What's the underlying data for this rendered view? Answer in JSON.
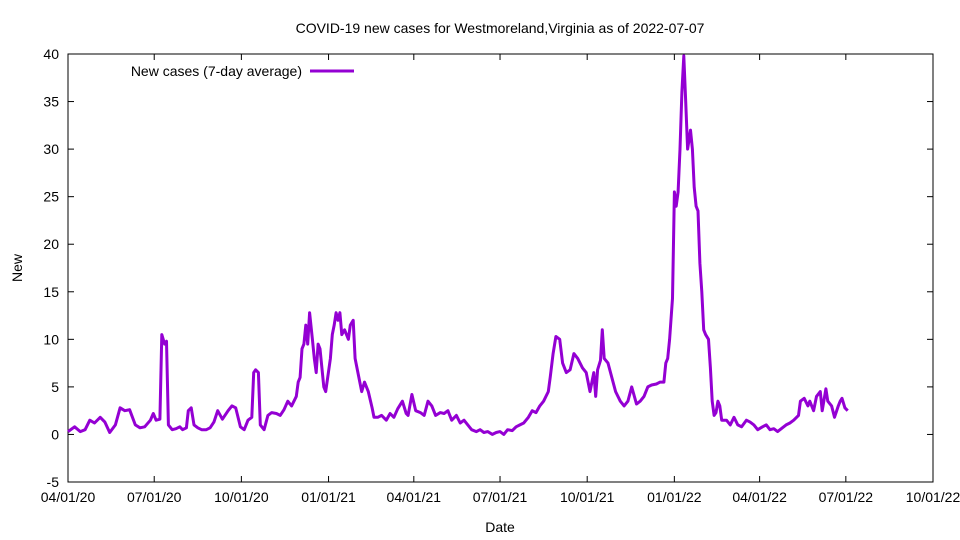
{
  "chart_data": {
    "type": "line",
    "title": "COVID-19 new cases for Westmoreland,Virginia as of 2022-07-07",
    "xlabel": "Date",
    "ylabel": "New",
    "x_unit": "days since 2020-04-01",
    "xlim": [
      0,
      913
    ],
    "ylim": [
      -5,
      40
    ],
    "grid": false,
    "legend_position": "top-left",
    "x_ticks": [
      {
        "value": 0,
        "label": "04/01/20"
      },
      {
        "value": 91,
        "label": "07/01/20"
      },
      {
        "value": 183,
        "label": "10/01/20"
      },
      {
        "value": 275,
        "label": "01/01/21"
      },
      {
        "value": 365,
        "label": "04/01/21"
      },
      {
        "value": 456,
        "label": "07/01/21"
      },
      {
        "value": 548,
        "label": "10/01/21"
      },
      {
        "value": 640,
        "label": "01/01/22"
      },
      {
        "value": 730,
        "label": "04/01/22"
      },
      {
        "value": 821,
        "label": "07/01/22"
      },
      {
        "value": 913,
        "label": "10/01/22"
      }
    ],
    "y_ticks": [
      {
        "value": -5,
        "label": "-5"
      },
      {
        "value": 0,
        "label": "0"
      },
      {
        "value": 5,
        "label": "5"
      },
      {
        "value": 10,
        "label": "10"
      },
      {
        "value": 15,
        "label": "15"
      },
      {
        "value": 20,
        "label": "20"
      },
      {
        "value": 25,
        "label": "25"
      },
      {
        "value": 30,
        "label": "30"
      },
      {
        "value": 35,
        "label": "35"
      },
      {
        "value": 40,
        "label": "40"
      }
    ],
    "series": [
      {
        "name": "New cases (7-day average)",
        "color": "#9400d3",
        "points": [
          [
            0,
            0.3
          ],
          [
            7,
            0.8
          ],
          [
            13,
            0.3
          ],
          [
            18,
            0.5
          ],
          [
            23,
            1.5
          ],
          [
            28,
            1.2
          ],
          [
            34,
            1.8
          ],
          [
            39,
            1.3
          ],
          [
            44,
            0.2
          ],
          [
            50,
            1.0
          ],
          [
            55,
            2.8
          ],
          [
            60,
            2.5
          ],
          [
            65,
            2.6
          ],
          [
            71,
            1.0
          ],
          [
            76,
            0.7
          ],
          [
            81,
            0.8
          ],
          [
            87,
            1.5
          ],
          [
            90,
            2.2
          ],
          [
            93,
            1.5
          ],
          [
            97,
            1.6
          ],
          [
            99,
            10.5
          ],
          [
            102,
            9.5
          ],
          [
            104,
            9.8
          ],
          [
            106,
            1.0
          ],
          [
            110,
            0.5
          ],
          [
            114,
            0.6
          ],
          [
            118,
            0.8
          ],
          [
            121,
            0.5
          ],
          [
            125,
            0.7
          ],
          [
            127,
            2.5
          ],
          [
            130,
            2.8
          ],
          [
            133,
            1.0
          ],
          [
            137,
            0.7
          ],
          [
            141,
            0.5
          ],
          [
            146,
            0.5
          ],
          [
            150,
            0.7
          ],
          [
            154,
            1.3
          ],
          [
            158,
            2.5
          ],
          [
            163,
            1.6
          ],
          [
            169,
            2.5
          ],
          [
            173,
            3.0
          ],
          [
            177,
            2.8
          ],
          [
            182,
            0.8
          ],
          [
            186,
            0.5
          ],
          [
            190,
            1.5
          ],
          [
            194,
            1.8
          ],
          [
            196,
            6.5
          ],
          [
            198,
            6.8
          ],
          [
            201,
            6.5
          ],
          [
            203,
            1.0
          ],
          [
            207,
            0.5
          ],
          [
            211,
            2.0
          ],
          [
            215,
            2.3
          ],
          [
            220,
            2.2
          ],
          [
            224,
            2.0
          ],
          [
            228,
            2.6
          ],
          [
            232,
            3.5
          ],
          [
            236,
            3.0
          ],
          [
            241,
            4.0
          ],
          [
            243,
            5.5
          ],
          [
            245,
            6.0
          ],
          [
            247,
            9.0
          ],
          [
            249,
            9.5
          ],
          [
            251,
            11.5
          ],
          [
            253,
            9.5
          ],
          [
            255,
            12.8
          ],
          [
            258,
            10
          ],
          [
            260,
            8
          ],
          [
            262,
            6.5
          ],
          [
            264,
            9.5
          ],
          [
            266,
            9
          ],
          [
            268,
            7
          ],
          [
            270,
            5
          ],
          [
            272,
            4.5
          ],
          [
            277,
            8.0
          ],
          [
            279,
            10.5
          ],
          [
            281,
            11.5
          ],
          [
            283,
            12.8
          ],
          [
            285,
            12
          ],
          [
            287,
            12.8
          ],
          [
            289,
            10.5
          ],
          [
            292,
            11
          ],
          [
            296,
            10
          ],
          [
            298,
            11.5
          ],
          [
            301,
            12
          ],
          [
            303,
            8
          ],
          [
            306,
            6.5
          ],
          [
            310,
            4.5
          ],
          [
            313,
            5.5
          ],
          [
            317,
            4.5
          ],
          [
            321,
            2.8
          ],
          [
            323,
            1.8
          ],
          [
            327,
            1.8
          ],
          [
            331,
            2.0
          ],
          [
            336,
            1.5
          ],
          [
            340,
            2.2
          ],
          [
            344,
            1.8
          ],
          [
            348,
            2.7
          ],
          [
            353,
            3.5
          ],
          [
            357,
            2.2
          ],
          [
            359,
            2.0
          ],
          [
            363,
            4.2
          ],
          [
            367,
            2.5
          ],
          [
            372,
            2.3
          ],
          [
            376,
            2.0
          ],
          [
            380,
            3.5
          ],
          [
            384,
            3.0
          ],
          [
            388,
            2.0
          ],
          [
            393,
            2.3
          ],
          [
            397,
            2.2
          ],
          [
            401,
            2.5
          ],
          [
            405,
            1.5
          ],
          [
            410,
            2.0
          ],
          [
            414,
            1.2
          ],
          [
            418,
            1.5
          ],
          [
            422,
            1.0
          ],
          [
            426,
            0.5
          ],
          [
            431,
            0.3
          ],
          [
            435,
            0.5
          ],
          [
            439,
            0.2
          ],
          [
            443,
            0.3
          ],
          [
            448,
            0.0
          ],
          [
            452,
            0.2
          ],
          [
            456,
            0.3
          ],
          [
            460,
            0.0
          ],
          [
            464,
            0.5
          ],
          [
            469,
            0.4
          ],
          [
            473,
            0.8
          ],
          [
            477,
            1.0
          ],
          [
            481,
            1.2
          ],
          [
            486,
            1.8
          ],
          [
            490,
            2.5
          ],
          [
            494,
            2.3
          ],
          [
            498,
            3.0
          ],
          [
            502,
            3.5
          ],
          [
            507,
            4.5
          ],
          [
            509,
            6.0
          ],
          [
            512,
            8.5
          ],
          [
            515,
            10.3
          ],
          [
            519,
            10
          ],
          [
            522,
            7.5
          ],
          [
            526,
            6.5
          ],
          [
            530,
            6.8
          ],
          [
            534,
            8.5
          ],
          [
            538,
            8.0
          ],
          [
            543,
            7.0
          ],
          [
            547,
            6.5
          ],
          [
            551,
            4.5
          ],
          [
            555,
            6.5
          ],
          [
            557,
            4.0
          ],
          [
            559,
            6.8
          ],
          [
            562,
            7.8
          ],
          [
            564,
            11
          ],
          [
            566,
            8
          ],
          [
            570,
            7.5
          ],
          [
            574,
            6.0
          ],
          [
            578,
            4.5
          ],
          [
            583,
            3.5
          ],
          [
            587,
            3.0
          ],
          [
            591,
            3.5
          ],
          [
            595,
            5.0
          ],
          [
            600,
            3.2
          ],
          [
            604,
            3.5
          ],
          [
            608,
            4.0
          ],
          [
            612,
            5.0
          ],
          [
            616,
            5.2
          ],
          [
            621,
            5.3
          ],
          [
            625,
            5.5
          ],
          [
            629,
            5.5
          ],
          [
            631,
            7.5
          ],
          [
            633,
            8.0
          ],
          [
            635,
            10
          ],
          [
            638,
            14.3
          ],
          [
            640,
            25.5
          ],
          [
            642,
            24
          ],
          [
            644,
            25.5
          ],
          [
            646,
            30
          ],
          [
            648,
            36
          ],
          [
            650,
            39.8
          ],
          [
            652,
            35
          ],
          [
            654,
            30
          ],
          [
            657,
            32
          ],
          [
            659,
            30
          ],
          [
            661,
            26
          ],
          [
            663,
            24
          ],
          [
            665,
            23.5
          ],
          [
            667,
            18
          ],
          [
            669,
            15
          ],
          [
            671,
            11
          ],
          [
            673,
            10.5
          ],
          [
            676,
            10
          ],
          [
            678,
            7
          ],
          [
            680,
            3.5
          ],
          [
            682,
            2.0
          ],
          [
            684,
            2.3
          ],
          [
            686,
            3.5
          ],
          [
            688,
            3.0
          ],
          [
            690,
            1.5
          ],
          [
            695,
            1.5
          ],
          [
            699,
            1.0
          ],
          [
            703,
            1.8
          ],
          [
            707,
            1.0
          ],
          [
            711,
            0.8
          ],
          [
            716,
            1.5
          ],
          [
            720,
            1.3
          ],
          [
            724,
            1.0
          ],
          [
            728,
            0.5
          ],
          [
            733,
            0.8
          ],
          [
            737,
            1.0
          ],
          [
            741,
            0.5
          ],
          [
            745,
            0.6
          ],
          [
            749,
            0.3
          ],
          [
            754,
            0.7
          ],
          [
            758,
            1.0
          ],
          [
            762,
            1.2
          ],
          [
            766,
            1.5
          ],
          [
            771,
            2.0
          ],
          [
            773,
            3.5
          ],
          [
            777,
            3.8
          ],
          [
            781,
            3.0
          ],
          [
            783,
            3.5
          ],
          [
            787,
            2.5
          ],
          [
            790,
            4.0
          ],
          [
            794,
            4.5
          ],
          [
            796,
            2.5
          ],
          [
            800,
            4.8
          ],
          [
            802,
            3.5
          ],
          [
            806,
            3.0
          ],
          [
            809,
            1.8
          ],
          [
            813,
            3.0
          ],
          [
            815,
            3.5
          ],
          [
            817,
            3.8
          ],
          [
            820,
            2.8
          ],
          [
            823,
            2.5
          ]
        ]
      }
    ]
  }
}
